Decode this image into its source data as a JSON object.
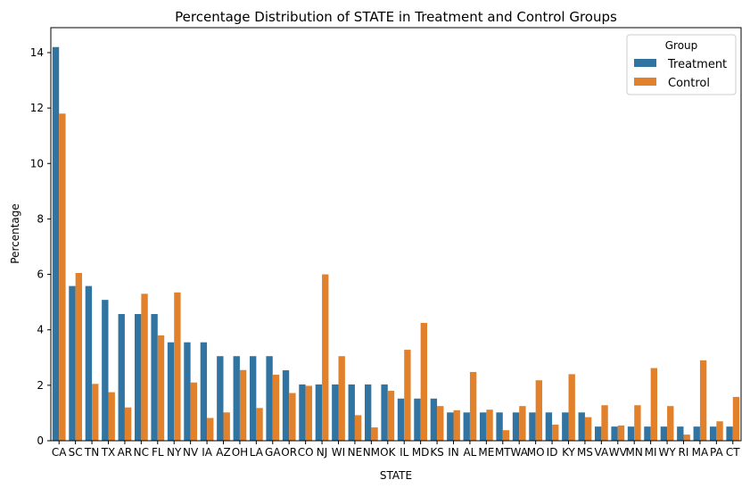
{
  "chart_data": {
    "type": "bar",
    "title": "Percentage Distribution of STATE in Treatment and Control Groups",
    "xlabel": "STATE",
    "ylabel": "Percentage",
    "ylim": [
      0,
      14.9
    ],
    "yticks": [
      0,
      2,
      4,
      6,
      8,
      10,
      12,
      14
    ],
    "grid": false,
    "legend": {
      "title": "Group",
      "placement": "top-right"
    },
    "categories": [
      "CA",
      "SC",
      "TN",
      "TX",
      "AR",
      "NC",
      "FL",
      "NY",
      "NV",
      "IA",
      "AZ",
      "OH",
      "LA",
      "GA",
      "OR",
      "CO",
      "NJ",
      "WI",
      "NE",
      "NM",
      "OK",
      "IL",
      "MD",
      "KS",
      "IN",
      "AL",
      "ME",
      "MT",
      "WA",
      "MO",
      "ID",
      "KY",
      "MS",
      "VA",
      "WV",
      "MN",
      "MI",
      "WY",
      "RI",
      "MA",
      "PA",
      "CT"
    ],
    "series": [
      {
        "name": "Treatment",
        "color": "#3274a1",
        "values": [
          14.2,
          5.58,
          5.58,
          5.08,
          4.57,
          4.57,
          4.57,
          3.55,
          3.55,
          3.55,
          3.05,
          3.05,
          3.05,
          3.05,
          2.54,
          2.03,
          2.03,
          2.03,
          2.03,
          2.03,
          2.03,
          1.52,
          1.52,
          1.52,
          1.02,
          1.02,
          1.02,
          1.02,
          1.02,
          1.02,
          1.02,
          1.02,
          1.02,
          0.51,
          0.51,
          0.51,
          0.51,
          0.51,
          0.51,
          0.51,
          0.51,
          0.51
        ]
      },
      {
        "name": "Control",
        "color": "#e1812c",
        "values": [
          11.8,
          6.05,
          2.05,
          1.75,
          1.2,
          5.3,
          3.8,
          5.35,
          2.1,
          0.82,
          1.02,
          2.55,
          1.18,
          2.38,
          1.72,
          1.98,
          6.0,
          3.05,
          0.92,
          0.48,
          1.8,
          3.28,
          4.25,
          1.25,
          1.1,
          2.48,
          1.12,
          0.38,
          1.25,
          2.18,
          0.58,
          2.4,
          0.85,
          1.28,
          0.55,
          1.28,
          2.62,
          1.25,
          0.22,
          2.9,
          0.7,
          1.58
        ]
      }
    ]
  }
}
